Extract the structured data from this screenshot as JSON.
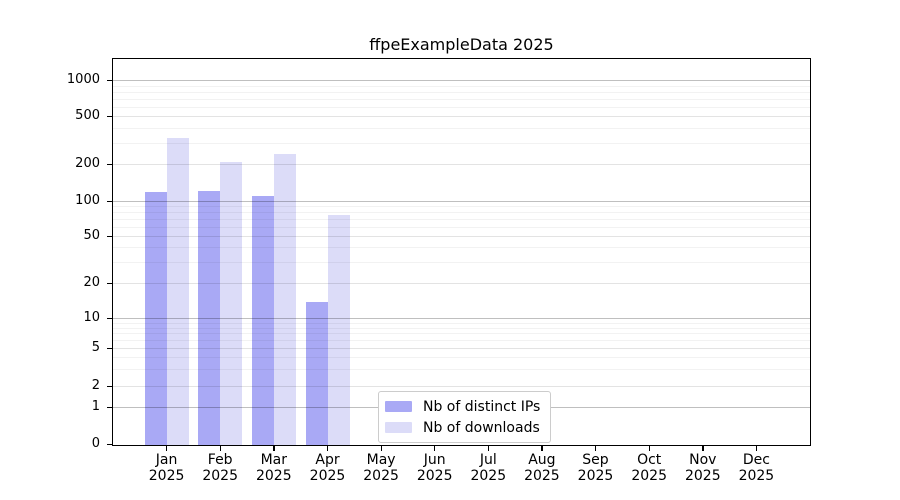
{
  "title": "ffpeExampleData 2025",
  "chart_data": {
    "type": "bar",
    "title": "ffpeExampleData 2025",
    "categories": [
      "Jan 2025",
      "Feb 2025",
      "Mar 2025",
      "Apr 2025",
      "May 2025",
      "Jun 2025",
      "Jul 2025",
      "Aug 2025",
      "Sep 2025",
      "Oct 2025",
      "Nov 2025",
      "Dec 2025"
    ],
    "series": [
      {
        "name": "Nb of distinct IPs",
        "color": "#a9a9f5",
        "values": [
          120,
          122,
          112,
          14,
          0,
          0,
          0,
          0,
          0,
          0,
          0,
          0
        ]
      },
      {
        "name": "Nb of downloads",
        "color": "#dcdcf8",
        "values": [
          335,
          210,
          245,
          78,
          0,
          0,
          0,
          0,
          0,
          0,
          0,
          0
        ]
      }
    ],
    "xlabel": "",
    "ylabel": "",
    "yscale": "log with zero baseline (symlog-like)",
    "yticks": [
      0,
      1,
      2,
      5,
      10,
      20,
      50,
      100,
      200,
      500,
      1000
    ],
    "ylim": [
      0,
      1400
    ],
    "grid": "horizontal major and minor gridlines",
    "legend_position": "inside axes, lower center-right",
    "axis_color": "#000000",
    "gridline_major_values": [
      1,
      10,
      100,
      1000
    ],
    "gridline_mid_values": [
      2,
      5,
      20,
      50,
      200,
      500
    ],
    "gridline_minor_values": [
      3,
      4,
      6,
      7,
      8,
      9,
      30,
      40,
      60,
      70,
      80,
      90,
      300,
      400,
      600,
      700,
      800,
      900
    ]
  }
}
